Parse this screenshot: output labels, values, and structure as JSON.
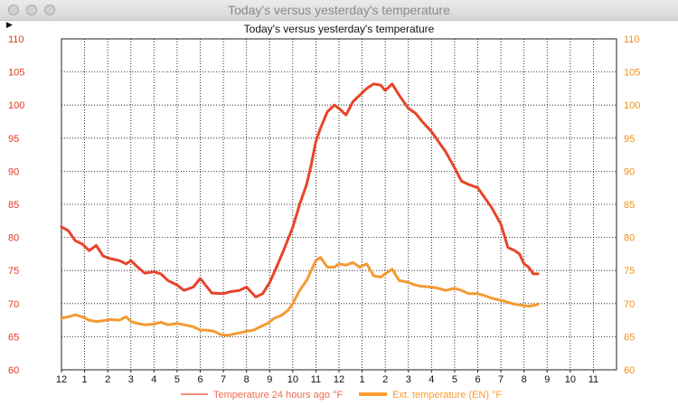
{
  "window": {
    "title": "Today's versus yesterday's temperature"
  },
  "colors": {
    "yesterday": "#f06a50",
    "today": "#ff9a2e",
    "today_line": "#f39a34",
    "yesterday_line": "#e8442a",
    "left_axis": "#e03a1e",
    "right_axis": "#f0901a"
  },
  "chart_data": {
    "type": "line",
    "title": "Today's versus yesterday's temperature",
    "xlabel": "",
    "ylabel_left": "",
    "ylabel_right": "",
    "ylim": [
      60,
      110
    ],
    "yticks": [
      "60",
      "65",
      "70",
      "75",
      "80",
      "85",
      "90",
      "95",
      "100",
      "105",
      "110"
    ],
    "xlim": [
      0,
      24
    ],
    "xticks": [
      "12",
      "1",
      "2",
      "3",
      "4",
      "5",
      "6",
      "7",
      "8",
      "9",
      "10",
      "11",
      "12",
      "1",
      "2",
      "3",
      "4",
      "5",
      "6",
      "7",
      "8",
      "9",
      "10",
      "11"
    ],
    "grid": true,
    "legend_position": "bottom",
    "series": [
      {
        "name": "Temperature 24 hours ago °F",
        "color_key": "yesterday_line",
        "x": [
          0,
          0.3,
          0.6,
          0.9,
          1.2,
          1.5,
          1.8,
          2.1,
          2.5,
          2.8,
          3.0,
          3.3,
          3.6,
          4.0,
          4.3,
          4.6,
          5.0,
          5.3,
          5.7,
          6.0,
          6.5,
          7.0,
          7.3,
          7.7,
          8.0,
          8.4,
          8.7,
          9.0,
          9.3,
          9.6,
          10.0,
          10.3,
          10.6,
          10.8,
          11.0,
          11.2,
          11.5,
          11.8,
          12.0,
          12.3,
          12.6,
          12.9,
          13.2,
          13.5,
          13.8,
          14.0,
          14.3,
          14.6,
          15.0,
          15.3,
          15.6,
          16.0,
          16.3,
          16.6,
          17.0,
          17.3,
          17.6,
          18.0,
          18.3,
          18.6,
          19.0,
          19.3,
          19.6,
          19.8,
          20.0,
          20.2,
          20.4,
          20.6
        ],
        "values": [
          81.6,
          81.0,
          79.5,
          79.0,
          78.0,
          78.8,
          77.2,
          76.8,
          76.5,
          76.0,
          76.5,
          75.5,
          74.6,
          74.8,
          74.5,
          73.5,
          72.8,
          72.0,
          72.5,
          73.8,
          71.6,
          71.5,
          71.8,
          72.0,
          72.5,
          71.0,
          71.5,
          73.2,
          75.5,
          78.0,
          81.5,
          85.0,
          88.0,
          91.0,
          94.5,
          96.5,
          99.0,
          100.0,
          99.5,
          98.5,
          100.5,
          101.5,
          102.5,
          103.2,
          103.0,
          102.2,
          103.2,
          101.5,
          99.5,
          98.8,
          97.5,
          96.0,
          94.5,
          93.0,
          90.5,
          88.5,
          88.0,
          87.5,
          86.0,
          84.5,
          82.0,
          78.5,
          78.0,
          77.5,
          76.0,
          75.5,
          74.5,
          74.5
        ]
      },
      {
        "name": "Ext. temperature (EN) °F",
        "color_key": "today_line",
        "x": [
          0,
          0.3,
          0.6,
          0.9,
          1.2,
          1.5,
          1.8,
          2.1,
          2.5,
          2.8,
          3.0,
          3.3,
          3.6,
          4.0,
          4.3,
          4.6,
          5.0,
          5.3,
          5.7,
          6.0,
          6.3,
          6.6,
          6.9,
          7.2,
          7.6,
          8.0,
          8.3,
          8.6,
          8.9,
          9.2,
          9.5,
          9.8,
          10.0,
          10.3,
          10.6,
          10.8,
          11.0,
          11.2,
          11.5,
          11.8,
          12.0,
          12.3,
          12.6,
          12.9,
          13.2,
          13.5,
          13.8,
          14.0,
          14.3,
          14.6,
          15.0,
          15.3,
          15.6,
          16.0,
          16.3,
          16.6,
          17.0,
          17.3,
          17.6,
          18.0,
          18.3,
          18.6,
          19.0,
          19.3,
          19.6,
          19.8,
          20.0,
          20.2,
          20.4,
          20.6
        ],
        "values": [
          67.8,
          68.0,
          68.3,
          68.0,
          67.5,
          67.3,
          67.4,
          67.6,
          67.5,
          68.0,
          67.3,
          67.0,
          66.8,
          66.9,
          67.2,
          66.8,
          67.0,
          66.8,
          66.5,
          66.0,
          66.0,
          65.8,
          65.3,
          65.2,
          65.5,
          65.8,
          66.0,
          66.5,
          67.0,
          67.8,
          68.2,
          69.0,
          70.0,
          72.0,
          73.5,
          75.0,
          76.5,
          77.0,
          75.5,
          75.5,
          76.0,
          75.8,
          76.2,
          75.5,
          76.0,
          74.2,
          74.0,
          74.5,
          75.2,
          73.5,
          73.2,
          72.8,
          72.6,
          72.5,
          72.3,
          72.0,
          72.3,
          72.0,
          71.5,
          71.5,
          71.2,
          70.8,
          70.5,
          70.2,
          69.9,
          69.8,
          69.7,
          69.6,
          69.7,
          69.9
        ]
      }
    ]
  }
}
